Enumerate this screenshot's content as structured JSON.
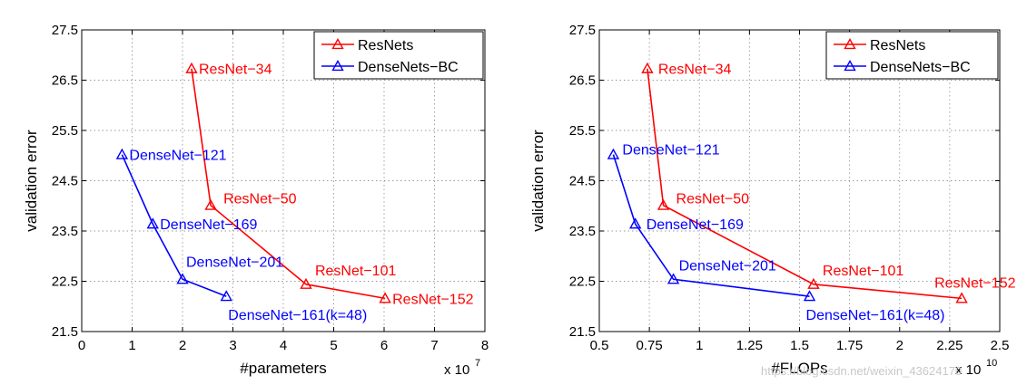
{
  "chart_data": [
    {
      "type": "line",
      "xlabel": "#parameters",
      "ylabel": "validation error",
      "x_multiplier": "x 10",
      "x_exponent": "7",
      "xlim": [
        0,
        8
      ],
      "ylim": [
        21.5,
        27.5
      ],
      "xticks": [
        "0",
        "1",
        "2",
        "3",
        "4",
        "5",
        "6",
        "7",
        "8"
      ],
      "yticks": [
        "21.5",
        "22.5",
        "23.5",
        "24.5",
        "25.5",
        "26.5",
        "27.5"
      ],
      "grid": true,
      "legend_position": "top-right",
      "series": [
        {
          "name": "ResNets",
          "color": "#ff0000",
          "marker": "triangle",
          "points": [
            {
              "x": 2.18,
              "y": 26.73,
              "label": "ResNet−34"
            },
            {
              "x": 2.56,
              "y": 24.01,
              "label": "ResNet−50"
            },
            {
              "x": 4.45,
              "y": 22.44,
              "label": "ResNet−101"
            },
            {
              "x": 6.02,
              "y": 22.16,
              "label": "ResNet−152"
            }
          ]
        },
        {
          "name": "DenseNets−BC",
          "color": "#0000ff",
          "marker": "triangle",
          "points": [
            {
              "x": 0.8,
              "y": 25.02,
              "label": "DenseNet−121"
            },
            {
              "x": 1.41,
              "y": 23.64,
              "label": "DenseNet−169"
            },
            {
              "x": 2.0,
              "y": 22.54,
              "label": "DenseNet−201"
            },
            {
              "x": 2.87,
              "y": 22.2,
              "label": "DenseNet−161(k=48)"
            }
          ]
        }
      ]
    },
    {
      "type": "line",
      "xlabel": "#FLOPs",
      "ylabel": "validation error",
      "x_multiplier": "x 10",
      "x_exponent": "10",
      "xlim": [
        0.5,
        2.5
      ],
      "ylim": [
        21.5,
        27.5
      ],
      "xticks": [
        "0.5",
        "0.75",
        "1",
        "1.25",
        "1.5",
        "1.75",
        "2",
        "2.25",
        "2.5"
      ],
      "yticks": [
        "21.5",
        "22.5",
        "23.5",
        "24.5",
        "25.5",
        "26.5",
        "27.5"
      ],
      "grid": true,
      "legend_position": "top-right",
      "series": [
        {
          "name": "ResNets",
          "color": "#ff0000",
          "marker": "triangle",
          "points": [
            {
              "x": 0.74,
              "y": 26.73,
              "label": "ResNet−34"
            },
            {
              "x": 0.82,
              "y": 24.01,
              "label": "ResNet−50"
            },
            {
              "x": 1.57,
              "y": 22.44,
              "label": "ResNet−101"
            },
            {
              "x": 2.31,
              "y": 22.16,
              "label": "ResNet−152"
            }
          ]
        },
        {
          "name": "DenseNets−BC",
          "color": "#0000ff",
          "marker": "triangle",
          "points": [
            {
              "x": 0.57,
              "y": 25.02,
              "label": "DenseNet−121"
            },
            {
              "x": 0.68,
              "y": 23.64,
              "label": "DenseNet−169"
            },
            {
              "x": 0.87,
              "y": 22.54,
              "label": "DenseNet−201"
            },
            {
              "x": 1.55,
              "y": 22.2,
              "label": "DenseNet−161(k=48)"
            }
          ]
        }
      ]
    }
  ],
  "watermark": "https://blog.csdn.net/weixin_43624170"
}
